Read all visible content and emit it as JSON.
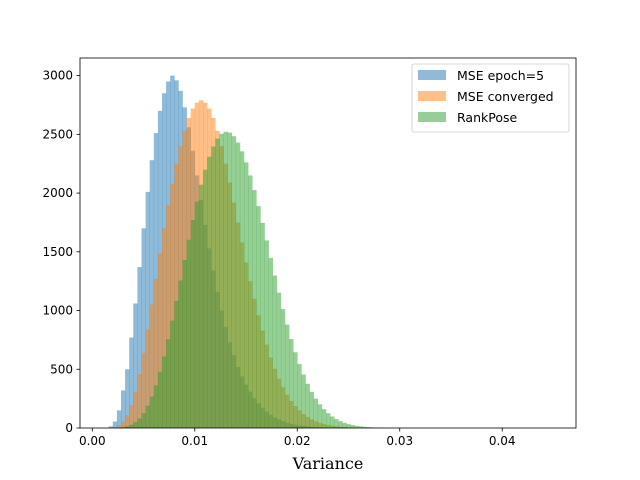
{
  "chart_data": {
    "type": "histogram",
    "title": "",
    "xlabel": "Variance",
    "ylabel": "",
    "xlim": [
      -0.0012,
      0.0472
    ],
    "ylim": [
      0,
      3150
    ],
    "xticks": [
      0.0,
      0.01,
      0.02,
      0.03,
      0.04
    ],
    "xtick_labels": [
      "0.00",
      "0.01",
      "0.02",
      "0.03",
      "0.04"
    ],
    "yticks": [
      0,
      500,
      1000,
      1500,
      2000,
      2500,
      3000
    ],
    "ytick_labels": [
      "0",
      "500",
      "1000",
      "1500",
      "2000",
      "2500",
      "3000"
    ],
    "legend_position": "top-right",
    "grid": false,
    "bin_width": 0.0004,
    "x": [
      0.0016,
      0.002,
      0.0024,
      0.0028,
      0.0032,
      0.0036,
      0.004,
      0.0044,
      0.0048,
      0.0052,
      0.0056,
      0.006,
      0.0064,
      0.0068,
      0.0072,
      0.0076,
      0.008,
      0.0084,
      0.0088,
      0.0092,
      0.0096,
      0.01,
      0.0104,
      0.0108,
      0.0112,
      0.0116,
      0.012,
      0.0124,
      0.0128,
      0.0132,
      0.0136,
      0.014,
      0.0144,
      0.0148,
      0.0152,
      0.0156,
      0.016,
      0.0164,
      0.0168,
      0.0172,
      0.0176,
      0.018,
      0.0184,
      0.0188,
      0.0192,
      0.0196,
      0.02,
      0.0204,
      0.0208,
      0.0212,
      0.0216,
      0.022,
      0.0224,
      0.0228,
      0.0232,
      0.0236,
      0.024,
      0.0244,
      0.0248,
      0.0252,
      0.0256,
      0.026,
      0.0264,
      0.0268,
      0.0272,
      0.0276,
      0.028,
      0.0284,
      0.0288,
      0.0292,
      0.0296,
      0.03,
      0.0304,
      0.0308,
      0.0312,
      0.0316,
      0.032,
      0.0324,
      0.0328,
      0.0332,
      0.0336,
      0.034,
      0.0344,
      0.0348,
      0.0352,
      0.0356,
      0.036,
      0.0364,
      0.0368,
      0.0372,
      0.0376,
      0.038,
      0.0384,
      0.0388,
      0.0392,
      0.0396,
      0.04,
      0.0404,
      0.0408,
      0.0412,
      0.0416,
      0.042,
      0.0424,
      0.0428,
      0.0432,
      0.0436,
      0.044
    ],
    "series": [
      {
        "name": "MSE epoch=5",
        "color": "#1f77b4",
        "opacity": 0.5,
        "values": [
          14,
          55,
          150,
          320,
          500,
          770,
          1060,
          1370,
          1700,
          2010,
          2280,
          2510,
          2700,
          2850,
          2950,
          3000,
          2960,
          2870,
          2730,
          2560,
          2360,
          2150,
          1940,
          1730,
          1530,
          1340,
          1160,
          1000,
          860,
          730,
          620,
          520,
          440,
          370,
          310,
          255,
          210,
          172,
          140,
          113,
          91,
          73,
          58,
          46,
          36,
          28,
          22,
          17,
          13,
          10,
          8,
          6,
          4.5,
          3.5,
          2.6,
          1.9,
          1.4,
          1,
          0.8,
          0.6,
          0.4,
          0.3,
          0.2,
          0.2,
          0.1,
          0.1,
          0.1,
          0,
          0,
          0,
          0,
          0,
          0,
          0,
          0,
          0,
          0,
          0,
          0,
          0,
          0,
          0,
          0,
          0,
          0,
          0,
          0,
          0,
          0,
          0,
          0,
          0,
          0,
          0,
          0,
          0,
          0,
          0,
          0,
          0,
          0,
          0,
          0,
          0,
          0,
          0,
          0
        ]
      },
      {
        "name": "MSE converged",
        "color": "#ff7f0e",
        "opacity": 0.5,
        "values": [
          2,
          8,
          23,
          55,
          110,
          195,
          310,
          460,
          640,
          840,
          1050,
          1270,
          1490,
          1700,
          1900,
          2080,
          2250,
          2400,
          2530,
          2640,
          2720,
          2770,
          2790,
          2770,
          2720,
          2640,
          2530,
          2400,
          2250,
          2090,
          1920,
          1750,
          1580,
          1410,
          1250,
          1100,
          960,
          830,
          710,
          600,
          505,
          420,
          347,
          284,
          231,
          187,
          150,
          119,
          94,
          74,
          57,
          44,
          34,
          26,
          19,
          14.5,
          10.8,
          8,
          5.9,
          4.3,
          3.1,
          2.2,
          1.6,
          1.1,
          0.8,
          0.6,
          0.4,
          0.3,
          0.2,
          0.1,
          0.1,
          0,
          0,
          0,
          0,
          0,
          0,
          0,
          0,
          0,
          0,
          0,
          0,
          0,
          0,
          0,
          0,
          0,
          0,
          0,
          0,
          0,
          0,
          0,
          0,
          0,
          0,
          0,
          0,
          0,
          0,
          0,
          0,
          0,
          0,
          0,
          0
        ]
      },
      {
        "name": "RankPose",
        "color": "#2ca02c",
        "opacity": 0.5,
        "values": [
          0,
          1,
          3,
          7,
          15,
          28,
          50,
          82,
          128,
          190,
          268,
          364,
          478,
          610,
          756,
          914,
          1082,
          1255,
          1430,
          1603,
          1770,
          1927,
          2071,
          2199,
          2309,
          2397,
          2463,
          2505,
          2522,
          2515,
          2484,
          2430,
          2355,
          2261,
          2150,
          2025,
          1889,
          1746,
          1597,
          1447,
          1298,
          1152,
          1012,
          880,
          757,
          645,
          544,
          455,
          376,
          308,
          250,
          201,
          160,
          126,
          98,
          76,
          58,
          44,
          33,
          25,
          18.5,
          13.6,
          10,
          7.2,
          5.2,
          3.7,
          2.6,
          1.8,
          1.3,
          0.9,
          0.6,
          0.4,
          0.3,
          0.2,
          0.1,
          0.1,
          0.1,
          0,
          0,
          0,
          0,
          0,
          0,
          0,
          0,
          0,
          0,
          0,
          0,
          0,
          0,
          0,
          0,
          0,
          0,
          0,
          0,
          0,
          0,
          0,
          0,
          0,
          0,
          0,
          0,
          0,
          0
        ]
      }
    ]
  }
}
